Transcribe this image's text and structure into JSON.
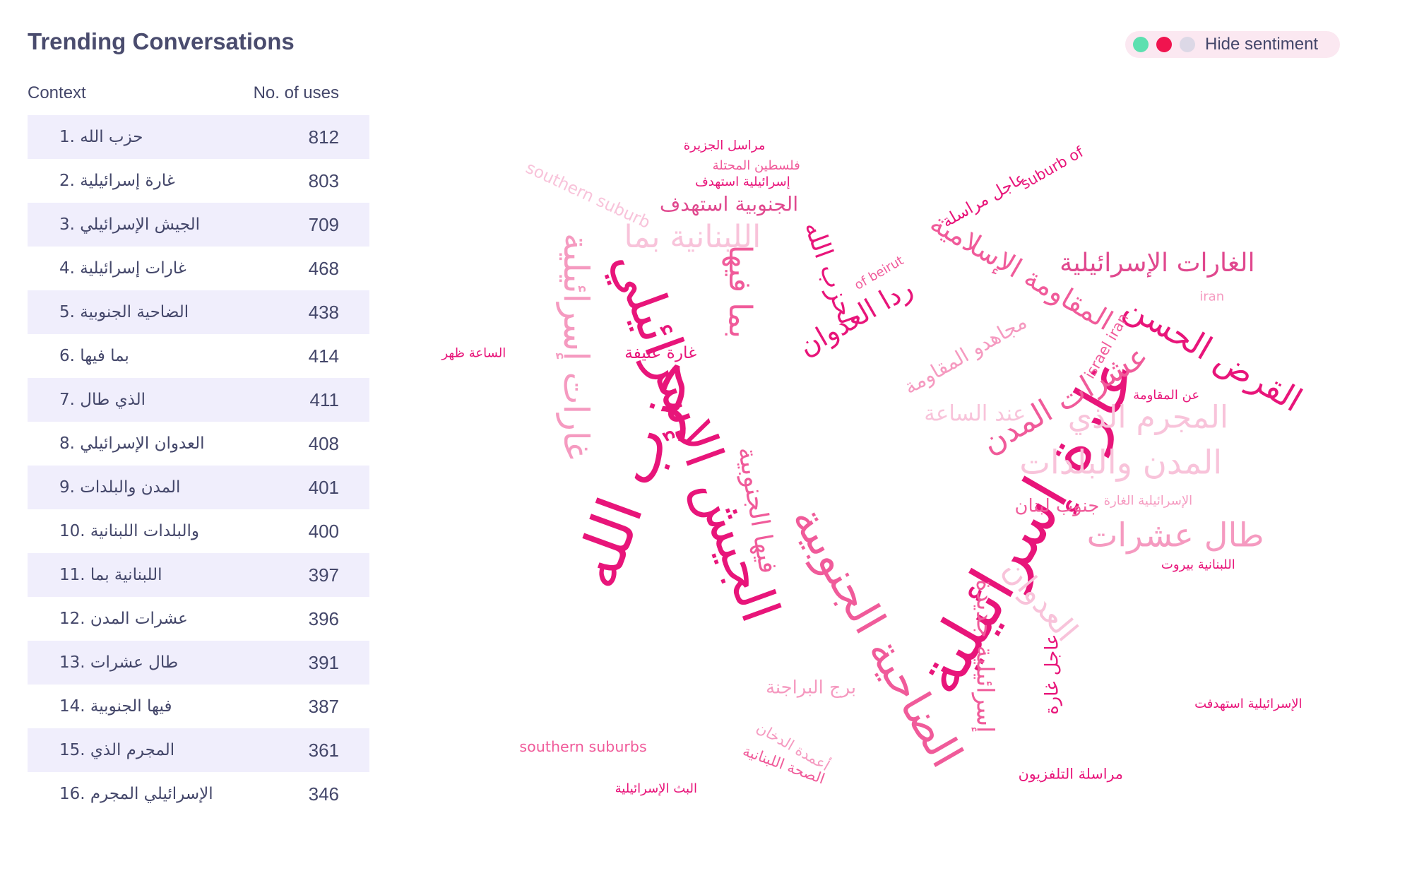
{
  "header": {
    "title": "Trending Conversations",
    "toggle_label": "Hide sentiment"
  },
  "table": {
    "columns": [
      "Context",
      "No. of uses"
    ],
    "rows": [
      [
        "1. حزب الله",
        812
      ],
      [
        "2. غارة إسرائيلية",
        803
      ],
      [
        "3. الجيش الإسرائيلي",
        709
      ],
      [
        "4. غارات إسرائيلية",
        468
      ],
      [
        "5. الضاحية الجنوبية",
        438
      ],
      [
        "6. بما فيها",
        414
      ],
      [
        "7. الذي طال",
        411
      ],
      [
        "8. العدوان الإسرائيلي",
        408
      ],
      [
        "9. المدن والبلدات",
        401
      ],
      [
        "10. والبلدات اللبنانية",
        400
      ],
      [
        "11. اللبنانية بما",
        397
      ],
      [
        "12. عشرات المدن",
        396
      ],
      [
        "13. طال عشرات",
        391
      ],
      [
        "14. فيها الجنوبية",
        387
      ],
      [
        "15. المجرم الذي",
        361
      ],
      [
        "16. الإسرائيلي المجرم",
        346
      ]
    ]
  },
  "word_cloud": {
    "words": [
      "غارة إسرائيلية",
      "حزب الله",
      "الجيش الإسرائيلي",
      "الضاحية الجنوبية",
      "الغارات الإسرائيلية",
      "القرض الحسن",
      "المدن والبلدات",
      "المجرم الذي",
      "طال عشرات",
      "عشرات المدن",
      "اللبنانية بما",
      "غارات إسرائيلية",
      "بما فيها",
      "ردا العدوان",
      "لحزب الله",
      "المقاومة الإسلامية",
      "الجنوبية استهدف",
      "فيها الجنوبية",
      "العدوان",
      "جنوب لبنان",
      "برج البراجنة",
      "southern suburbs",
      "southern suburb",
      "مراسل الجزيرة",
      "فلسطين المحتلة",
      "إسرائيلية استهدف",
      "غارة عنيفة",
      "الساعة ظهر",
      "عن المقاومة",
      "iran",
      "of beirut",
      "suburb of",
      "israel iran",
      "مراسلة التلفزيون",
      "الإسرائيلية استهدفت",
      "البث الإسرائيلية",
      "اللبنانية بيروت",
      "عاجل غارة",
      "إسرائيلية جديدة",
      "الإسرائيلية الغارة",
      "عاجل مراسلة",
      "مجاهدو المقاومة",
      "عند الساعة",
      "أعمدة الدخان",
      "الصحة اللبنانية"
    ]
  }
}
